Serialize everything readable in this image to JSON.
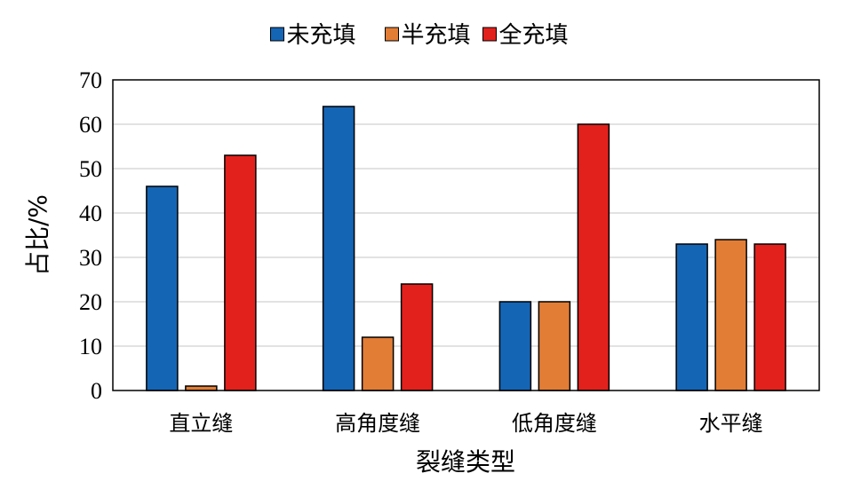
{
  "chart_data": {
    "type": "bar",
    "categories": [
      "直立缝",
      "高角度缝",
      "低角度缝",
      "水平缝"
    ],
    "series": [
      {
        "name": "未充填",
        "color": "#1565B5",
        "values": [
          46,
          64,
          20,
          33
        ]
      },
      {
        "name": "半充填",
        "color": "#E27D36",
        "values": [
          1,
          12,
          20,
          34
        ]
      },
      {
        "name": "全充填",
        "color": "#E2211C",
        "values": [
          53,
          24,
          60,
          33
        ]
      }
    ],
    "xlabel": "裂缝类型",
    "ylabel": "占比/%",
    "ylim": [
      0,
      70
    ],
    "yticks": [
      "0",
      "10",
      "20",
      "30",
      "40",
      "50",
      "60",
      "70"
    ],
    "grid": true,
    "legend_position": "top-center"
  }
}
